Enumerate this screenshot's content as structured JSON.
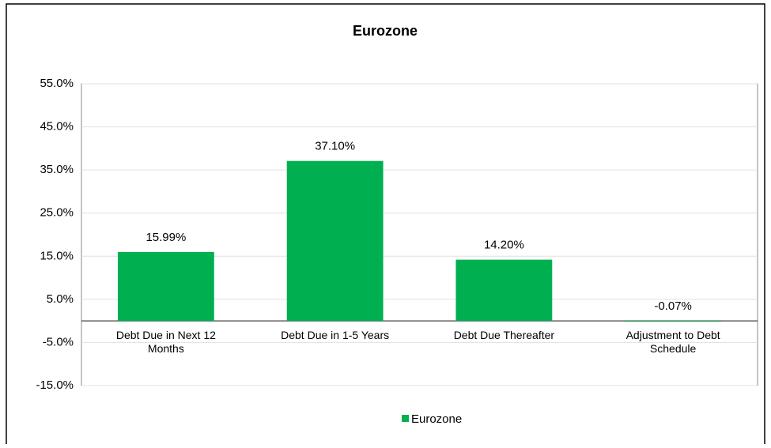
{
  "chart_data": {
    "type": "bar",
    "title": "Eurozone",
    "categories": [
      "Debt Due in Next 12 Months",
      "Debt Due in 1-5 Years",
      "Debt Due Thereafter",
      "Adjustment to Debt Schedule"
    ],
    "series": [
      {
        "name": "Eurozone",
        "color": "#00b050",
        "values": [
          15.99,
          37.1,
          14.2,
          -0.07
        ],
        "value_labels": [
          "15.99%",
          "37.10%",
          "14.20%",
          "-0.07%"
        ]
      }
    ],
    "ylim": [
      -15,
      55
    ],
    "yticks": [
      {
        "value": -15,
        "label": "-15.0%"
      },
      {
        "value": -5,
        "label": "-5.0%"
      },
      {
        "value": 5,
        "label": "5.0%"
      },
      {
        "value": 15,
        "label": "15.0%"
      },
      {
        "value": 25,
        "label": "25.0%"
      },
      {
        "value": 35,
        "label": "35.0%"
      },
      {
        "value": 45,
        "label": "45.0%"
      },
      {
        "value": 55,
        "label": "55.0%"
      }
    ],
    "grid": true,
    "legend": "bottom"
  }
}
